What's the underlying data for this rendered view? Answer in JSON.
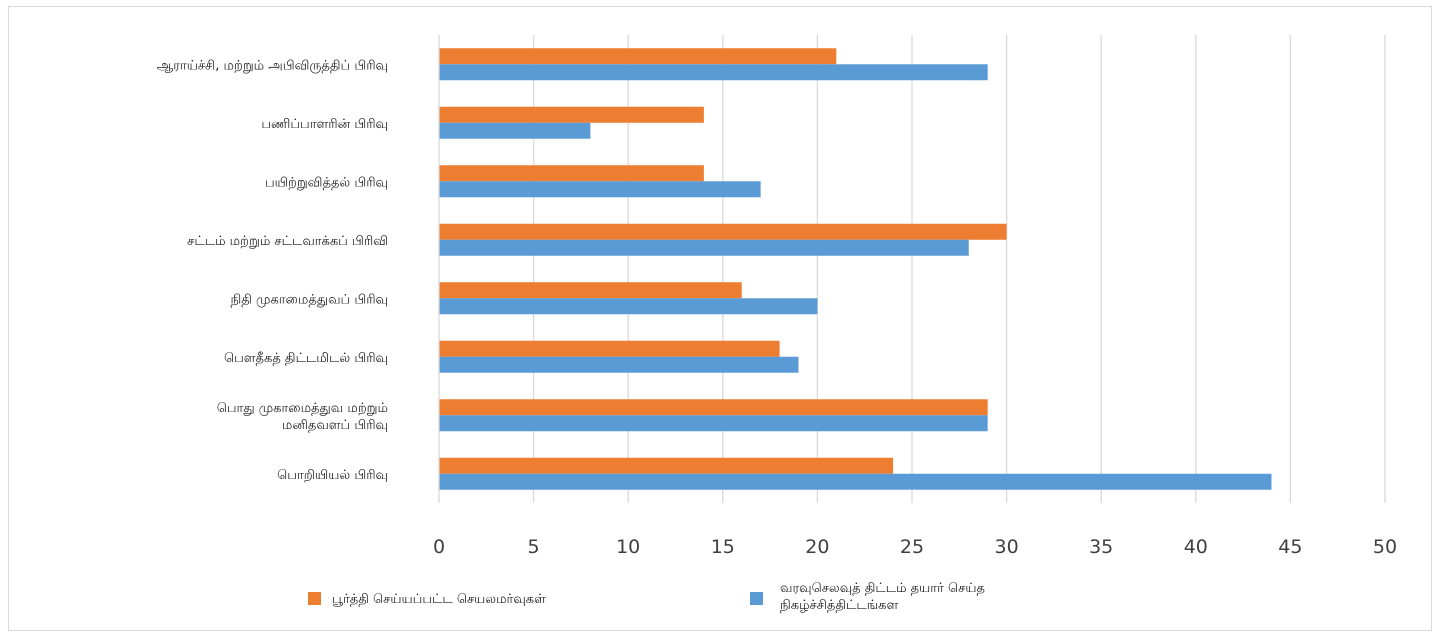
{
  "chart_data": {
    "type": "bar",
    "orientation": "horizontal",
    "categories": [
      [
        "ஆராய்ச்சி, மற்றும் அபிவிருத்திப் பிரிவு"
      ],
      [
        "பணிப்பாளரின் பிரிவு"
      ],
      [
        "பயிற்றுவித்தல் பிரிவு"
      ],
      [
        "சட்டம் மற்றும் சட்டவாக்கப் பிரிவி"
      ],
      [
        "நிதி முகாமைத்துவப் பிரிவு"
      ],
      [
        "பௌதீகத் திட்டமிடல்  பிரிவு"
      ],
      [
        "பொது முகாமைத்துவ மற்றும்",
        "மனிதவளப் பிரிவு"
      ],
      [
        "பொறியியல் பிரிவு"
      ]
    ],
    "series": [
      {
        "name": "பூர்த்தி செய்யப்பட்ட செயலமர்வுகள்",
        "color": "#ed7d31",
        "values": [
          21,
          14,
          14,
          30,
          16,
          18,
          29,
          24
        ]
      },
      {
        "name": "வரவுசெலவுத் திட்டம் தயார் செய்த நிகழ்ச்சித்திட்டங்கள",
        "name_lines": [
          "வரவுசெலவுத் திட்டம் தயார் செய்த",
          "நிகழ்ச்சித்திட்டங்கள"
        ],
        "color": "#5b9bd5",
        "values": [
          29,
          8,
          17,
          28,
          20,
          19,
          29,
          44
        ]
      }
    ],
    "xlim": [
      0,
      50
    ],
    "xticks": [
      0,
      5,
      10,
      15,
      20,
      25,
      30,
      35,
      40,
      45,
      50
    ],
    "grid": "vertical",
    "legend": "bottom",
    "title": "",
    "xlabel": "",
    "ylabel": ""
  }
}
